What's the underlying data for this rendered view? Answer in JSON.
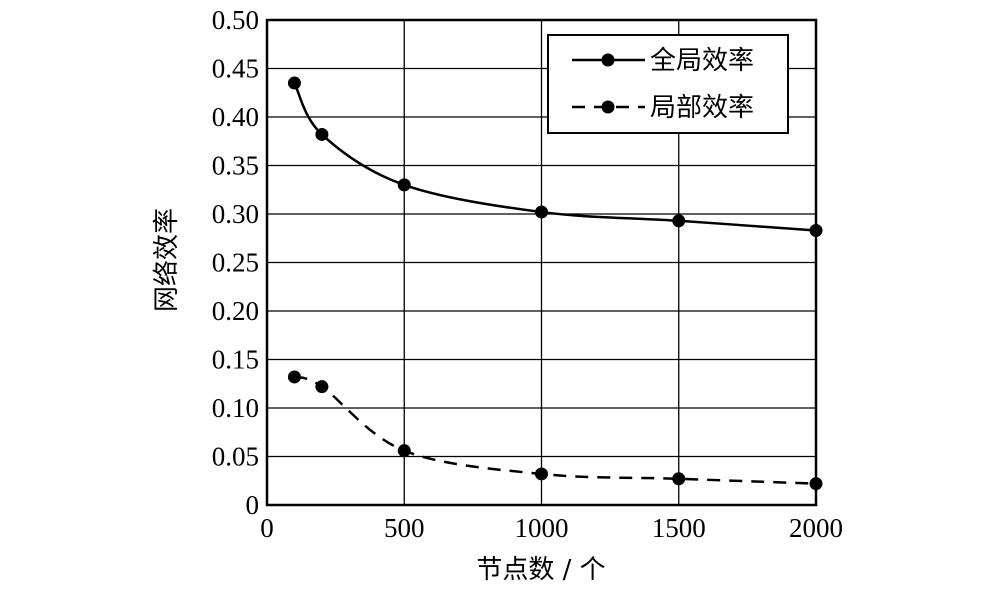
{
  "chart_data": {
    "type": "line",
    "xlabel": "节点数 / 个",
    "ylabel": "网络效率",
    "xlim": [
      0,
      2000
    ],
    "ylim": [
      0,
      0.5
    ],
    "xticks": [
      0,
      500,
      1000,
      1500,
      2000
    ],
    "xtick_labels": [
      "0",
      "500",
      "1000",
      "1500",
      "2000"
    ],
    "yticks": [
      0,
      0.05,
      0.1,
      0.15,
      0.2,
      0.25,
      0.3,
      0.35,
      0.4,
      0.45,
      0.5
    ],
    "ytick_labels": [
      "0",
      "0.05",
      "0.10",
      "0.15",
      "0.20",
      "0.25",
      "0.30",
      "0.35",
      "0.40",
      "0.45",
      "0.50"
    ],
    "grid": true,
    "legend_position": "top-right",
    "series": [
      {
        "name": "全局效率",
        "line_style": "solid",
        "marker": "circle",
        "color": "#000000",
        "x": [
          100,
          200,
          500,
          1000,
          1500,
          2000
        ],
        "y": [
          0.435,
          0.382,
          0.33,
          0.302,
          0.293,
          0.283
        ]
      },
      {
        "name": "局部效率",
        "line_style": "dashed",
        "marker": "circle",
        "color": "#000000",
        "x": [
          100,
          200,
          500,
          1000,
          1500,
          2000
        ],
        "y": [
          0.132,
          0.122,
          0.056,
          0.032,
          0.027,
          0.022
        ]
      }
    ]
  }
}
